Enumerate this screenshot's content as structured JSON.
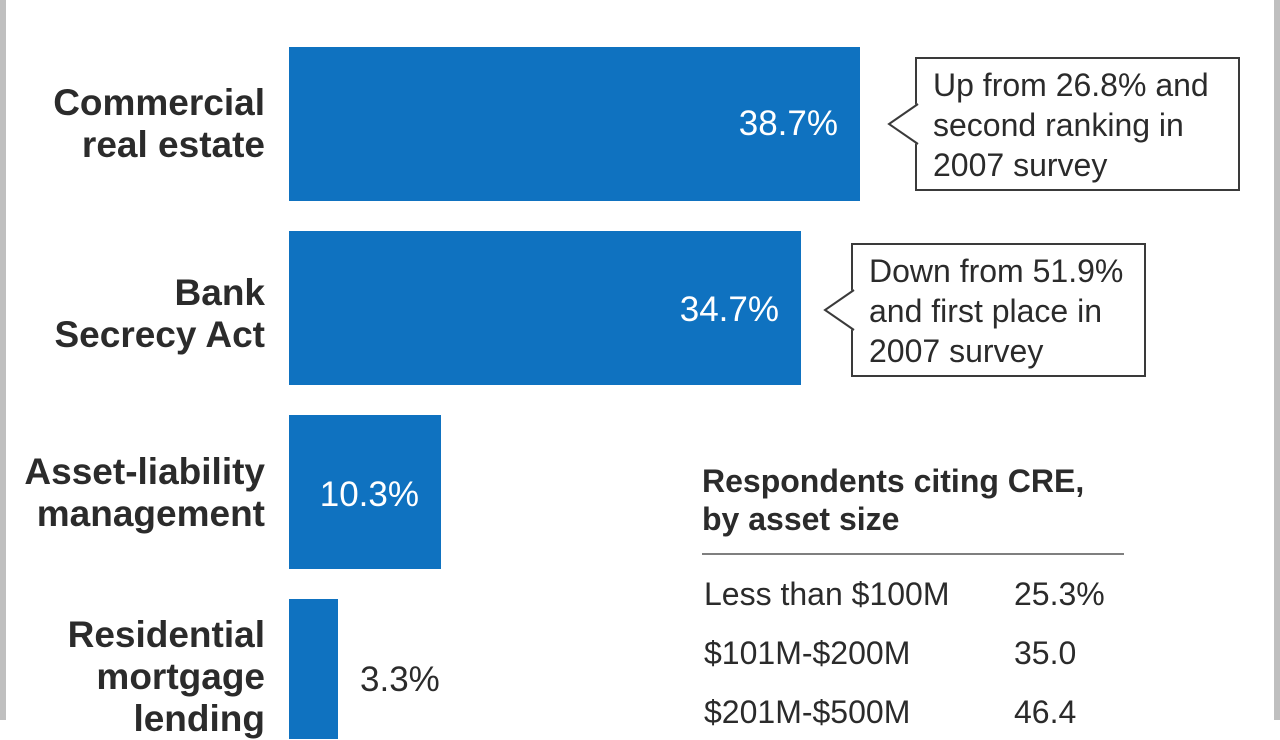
{
  "chart_data": {
    "type": "bar",
    "orientation": "horizontal",
    "categories": [
      [
        "Commercial",
        "real estate"
      ],
      [
        "Bank",
        "Secrecy Act"
      ],
      [
        "Asset-liability",
        "management"
      ],
      [
        "Residential",
        "mortgage",
        "lending"
      ]
    ],
    "values": [
      38.7,
      34.7,
      10.3,
      3.3
    ],
    "value_labels": [
      "38.7%",
      "34.7%",
      "10.3%",
      "3.3%"
    ],
    "bar_color": "#0f72c0",
    "annotations": [
      {
        "category_index": 0,
        "lines": [
          "Up from 26.8% and",
          "second ranking in",
          "2007 survey"
        ]
      },
      {
        "category_index": 1,
        "lines": [
          "Down from 51.9%",
          "and first place in",
          "2007 survey"
        ]
      }
    ]
  },
  "inset_table": {
    "title_lines": [
      "Respondents citing CRE,",
      "by asset size"
    ],
    "rows": [
      {
        "label": "Less than $100M",
        "value": "25.3%"
      },
      {
        "label": "$101M-$200M",
        "value": "35.0"
      },
      {
        "label": "$201M-$500M",
        "value": "46.4"
      }
    ]
  }
}
